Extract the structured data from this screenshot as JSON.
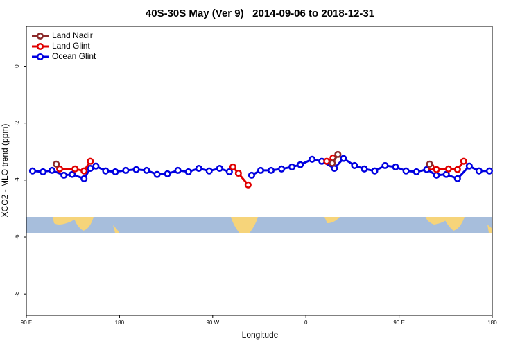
{
  "chart_data": {
    "type": "line",
    "title": "40S-30S May (Ver 9)   2014-09-06 to 2018-12-31",
    "x_label": "Longitude",
    "y_label": "XCO2 - MLO trend (ppm)",
    "xlim": [
      90,
      540
    ],
    "xticks": [
      {
        "value": 90,
        "label": "90 E"
      },
      {
        "value": 180,
        "label": "180"
      },
      {
        "value": 270,
        "label": "90 W"
      },
      {
        "value": 360,
        "label": "0"
      },
      {
        "value": 450,
        "label": "90 E"
      },
      {
        "value": 540,
        "label": "180"
      }
    ],
    "ylim": [
      -8.75,
      1.4
    ],
    "yticks": [
      0,
      -2,
      -4,
      -6,
      -8
    ],
    "legend": "top-left",
    "series": [
      {
        "name": "Land Nadir",
        "color": "#8b2a2a",
        "x": [
          118.9,
          null,
          385.5,
          390.9,
          null,
          479.5
        ],
        "values": [
          -3.44,
          null,
          -3.41,
          -3.1,
          null,
          -3.44
        ]
      },
      {
        "name": "Land Glint",
        "color": "#e00000",
        "x": [
          122.2,
          137.0,
          145.7,
          151.8,
          null,
          289.5,
          294.8,
          304.2,
          null,
          380.1,
          386.2,
          null,
          480.9,
          486.2,
          497.7,
          506.4,
          512.4
        ],
        "values": [
          -3.61,
          -3.61,
          -3.68,
          -3.34,
          null,
          -3.54,
          -3.76,
          -4.17,
          null,
          -3.34,
          -3.22,
          null,
          -3.54,
          -3.63,
          -3.61,
          -3.63,
          -3.34
        ]
      },
      {
        "name": "Ocean Glint",
        "color": "#0000e0",
        "x": [
          96.0,
          106.1,
          114.8,
          126.3,
          134.3,
          145.7,
          151.8,
          157.2,
          166.6,
          176.0,
          186.0,
          196.1,
          206.2,
          216.3,
          226.3,
          236.4,
          246.5,
          256.6,
          266.6,
          276.7,
          286.1,
          null,
          307.6,
          316.3,
          326.4,
          336.5,
          346.5,
          354.6,
          366.0,
          375.4,
          387.5,
          396.3,
          407.0,
          416.4,
          426.5,
          436.5,
          446.6,
          456.7,
          466.8,
          476.8,
          486.2,
          495.6,
          506.4,
          517.8,
          527.2,
          537.3
        ],
        "values": [
          -3.68,
          -3.71,
          -3.66,
          -3.83,
          -3.8,
          -3.95,
          -3.59,
          -3.51,
          -3.68,
          -3.71,
          -3.66,
          -3.63,
          -3.66,
          -3.8,
          -3.78,
          -3.66,
          -3.71,
          -3.59,
          -3.68,
          -3.59,
          -3.71,
          null,
          -3.83,
          -3.66,
          -3.66,
          -3.61,
          -3.54,
          -3.46,
          -3.27,
          -3.34,
          -3.59,
          -3.24,
          -3.49,
          -3.61,
          -3.68,
          -3.49,
          -3.54,
          -3.68,
          -3.71,
          -3.63,
          -3.83,
          -3.8,
          -3.95,
          -3.51,
          -3.68,
          -3.68
        ]
      }
    ]
  }
}
